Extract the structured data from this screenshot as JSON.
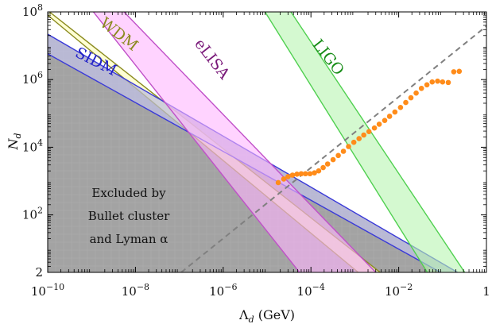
{
  "chart_data": {
    "type": "scatter",
    "xlabel_main": "Λ",
    "xlabel_sub": "d",
    "xlabel_unit": " (GeV)",
    "ylabel_main": "N",
    "ylabel_sub": "d",
    "x_scale": "log",
    "y_scale": "log",
    "xlim": [
      1e-10,
      1
    ],
    "ylim": [
      2,
      100000000.0
    ],
    "x_ticks": [
      {
        "value": 1e-10,
        "base": "10",
        "exp": "−10"
      },
      {
        "value": 1e-08,
        "base": "10",
        "exp": "−8"
      },
      {
        "value": 1e-06,
        "base": "10",
        "exp": "−6"
      },
      {
        "value": 0.0001,
        "base": "10",
        "exp": "−4"
      },
      {
        "value": 0.01,
        "base": "10",
        "exp": "−2"
      },
      {
        "value": 1,
        "base": "1",
        "exp": ""
      }
    ],
    "y_ticks": [
      {
        "value": 2,
        "base": "2",
        "exp": ""
      },
      {
        "value": 100.0,
        "base": "10",
        "exp": "2"
      },
      {
        "value": 10000.0,
        "base": "10",
        "exp": "4"
      },
      {
        "value": 1000000.0,
        "base": "10",
        "exp": "6"
      },
      {
        "value": 100000000.0,
        "base": "10",
        "exp": "8"
      }
    ],
    "excluded_region": {
      "label_lines": [
        "Excluded by",
        "Bullet cluster",
        "and Lyman α"
      ],
      "color": "#9e9e9e",
      "boundary": [
        [
          1e-10,
          22000000.0
        ],
        [
          0.22,
          2
        ]
      ]
    },
    "bands": [
      {
        "name": "WDM",
        "fill": "#ffffb8",
        "stroke": "#8a8a1e",
        "text_color": "#8a8a1e",
        "upper": [
          [
            1.1e-10,
            100000000.0
          ],
          [
            0.0038,
            2
          ]
        ],
        "lower": [
          [
            1e-10,
            80000000.0
          ],
          [
            0.0012,
            2
          ]
        ]
      },
      {
        "name": "SIDM",
        "fill": "#c8c8f5",
        "stroke": "#3a3ad8",
        "text_color": "#2020c8",
        "upper": [
          [
            1e-10,
            22000000.0
          ],
          [
            0.22,
            2
          ]
        ],
        "lower": [
          [
            1e-10,
            5800000.0
          ],
          [
            0.09,
            2
          ]
        ]
      },
      {
        "name": "eLISA",
        "fill": "#ffb6ff",
        "stroke": "#c050c8",
        "text_color": "#7a1a7a",
        "upper": [
          [
            5.5e-09,
            100000000.0
          ],
          [
            0.003,
            2
          ]
        ],
        "lower": [
          [
            1.1e-09,
            100000000.0
          ],
          [
            5.5e-05,
            2
          ]
        ]
      },
      {
        "name": "LIGO",
        "fill": "#b8f5b0",
        "stroke": "#50d050",
        "text_color": "#168c16",
        "upper": [
          [
            3.5e-05,
            100000000.0
          ],
          [
            0.32,
            2
          ]
        ],
        "lower": [
          [
            9e-06,
            100000000.0
          ],
          [
            0.045,
            2
          ]
        ]
      }
    ],
    "dashed_line": {
      "color": "#808080",
      "points": [
        [
          1.1e-07,
          2
        ],
        [
          1,
          38000000.0
        ]
      ]
    },
    "series": [
      {
        "color": "#ff8c1a",
        "points": [
          [
            1.8e-05,
            900
          ],
          [
            2.4e-05,
            1150
          ],
          [
            3e-05,
            1350
          ],
          [
            3.8e-05,
            1500
          ],
          [
            4.8e-05,
            1600
          ],
          [
            6e-05,
            1650
          ],
          [
            7.5e-05,
            1650
          ],
          [
            9.5e-05,
            1650
          ],
          [
            0.00012,
            1750
          ],
          [
            0.00015,
            2000
          ],
          [
            0.00019,
            2500
          ],
          [
            0.00024,
            3200
          ],
          [
            0.00032,
            4300
          ],
          [
            0.00042,
            5700
          ],
          [
            0.00055,
            7600
          ],
          [
            0.00072,
            10500
          ],
          [
            0.00095,
            14000
          ],
          [
            0.00125,
            18000
          ],
          [
            0.0016,
            23000
          ],
          [
            0.0021,
            29000
          ],
          [
            0.0028,
            37000
          ],
          [
            0.0036,
            48000
          ],
          [
            0.0048,
            62000
          ],
          [
            0.0062,
            82000
          ],
          [
            0.0082,
            110000
          ],
          [
            0.011,
            150000
          ],
          [
            0.0145,
            210000
          ],
          [
            0.019,
            290000
          ],
          [
            0.025,
            400000
          ],
          [
            0.033,
            550000
          ],
          [
            0.044,
            700000
          ],
          [
            0.058,
            850000
          ],
          [
            0.077,
            900000
          ],
          [
            0.1,
            850000
          ],
          [
            0.135,
            820000
          ],
          [
            0.18,
            1700000
          ],
          [
            0.24,
            1750000
          ]
        ]
      }
    ]
  }
}
